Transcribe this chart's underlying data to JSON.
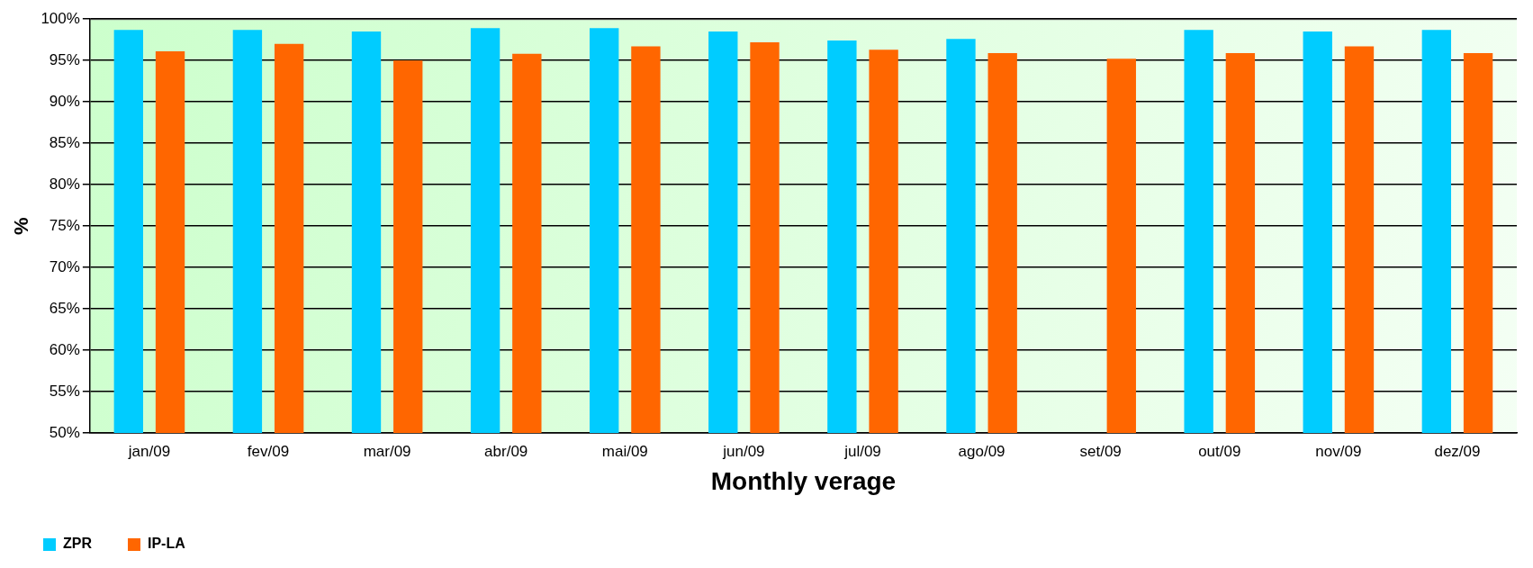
{
  "chart_data": {
    "type": "bar",
    "xlabel": "Monthly verage",
    "ylabel": "%",
    "categories": [
      "jan/09",
      "fev/09",
      "mar/09",
      "abr/09",
      "mai/09",
      "jun/09",
      "jul/09",
      "ago/09",
      "set/09",
      "out/09",
      "nov/09",
      "dez/09"
    ],
    "series": [
      {
        "name": "ZPR",
        "color": "#00ccff",
        "values": [
          98.7,
          98.7,
          98.5,
          98.9,
          98.9,
          98.5,
          97.4,
          97.6,
          null,
          98.7,
          98.5,
          98.7
        ]
      },
      {
        "name": "IP-LA",
        "color": "#ff6600",
        "values": [
          96.1,
          97.0,
          95.0,
          95.8,
          96.7,
          97.2,
          96.3,
          95.9,
          95.2,
          95.9,
          96.7,
          95.9
        ]
      }
    ],
    "ylim": [
      50,
      100
    ],
    "yticks": [
      {
        "value": 50,
        "label": "50%"
      },
      {
        "value": 55,
        "label": "55%"
      },
      {
        "value": 60,
        "label": "60%"
      },
      {
        "value": 65,
        "label": "65%"
      },
      {
        "value": 70,
        "label": "70%"
      },
      {
        "value": 75,
        "label": "75%"
      },
      {
        "value": 80,
        "label": "80%"
      },
      {
        "value": 85,
        "label": "85%"
      },
      {
        "value": 90,
        "label": "90%"
      },
      {
        "value": 95,
        "label": "95%"
      },
      {
        "value": 100,
        "label": "100%"
      }
    ],
    "grid": "y",
    "legend": "bottom left"
  }
}
